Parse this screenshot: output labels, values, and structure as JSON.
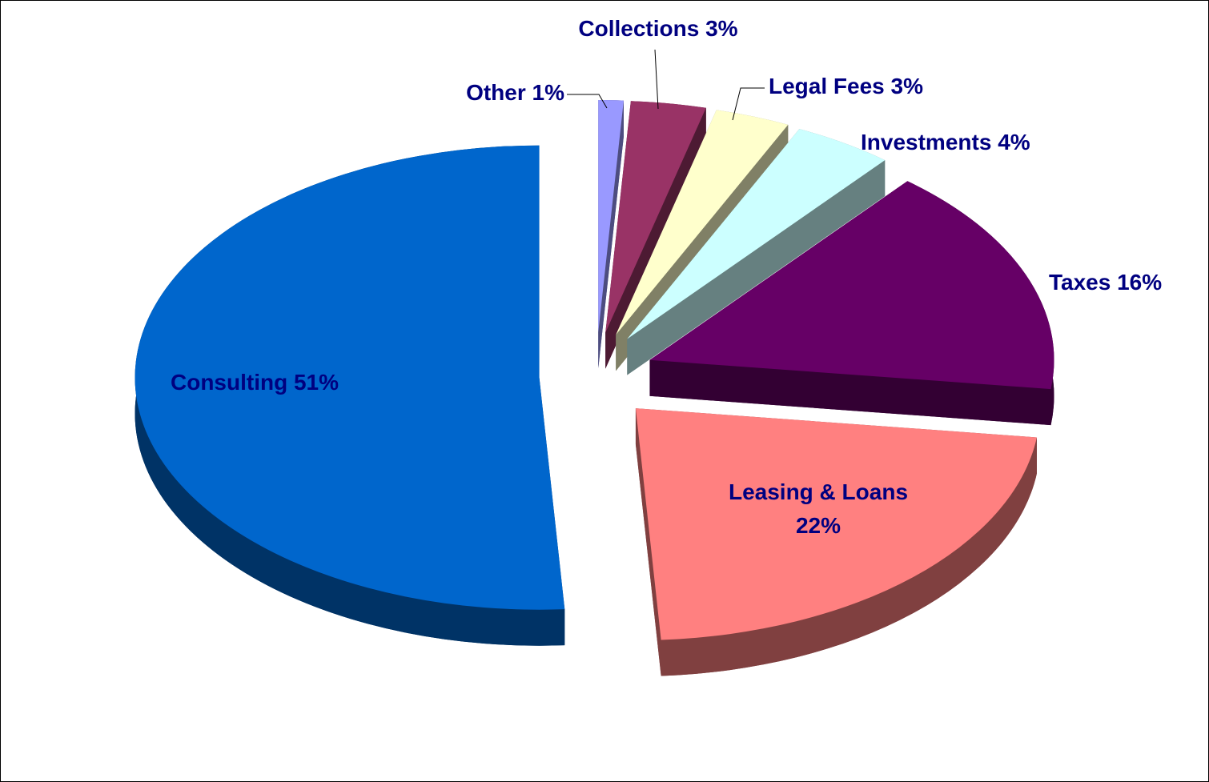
{
  "chart_data": {
    "type": "pie",
    "categories": [
      "Other",
      "Collections",
      "Legal Fees",
      "Investments",
      "Taxes",
      "Leasing & Loans",
      "Consulting"
    ],
    "values": [
      1,
      3,
      3,
      4,
      16,
      22,
      51
    ],
    "value_labels": [
      "1%",
      "3%",
      "3%",
      "4%",
      "16%",
      "22%",
      "51%"
    ],
    "colors": [
      "#9999ff",
      "#993366",
      "#ffffcc",
      "#ccffff",
      "#660066",
      "#ff8080",
      "#0066cc"
    ]
  }
}
